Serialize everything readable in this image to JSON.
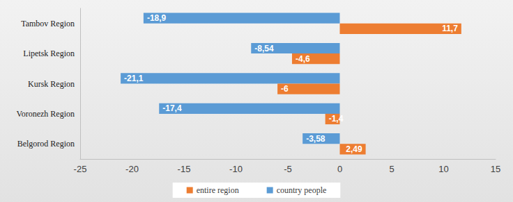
{
  "chart_data": {
    "type": "bar",
    "orientation": "horizontal",
    "categories": [
      "Belgorod Region",
      "Voronezh Region",
      "Kursk Region",
      "Lipetsk Region",
      "Tambov Region"
    ],
    "series": [
      {
        "name": "entire region",
        "color": "#ed7d31",
        "values": [
          2.49,
          -1.4,
          -6,
          -4.6,
          11.7
        ],
        "value_labels": [
          "2,49",
          "-1,4",
          "-6",
          "-4,6",
          "11,7"
        ]
      },
      {
        "name": "country people",
        "color": "#5b9bd5",
        "values": [
          -3.58,
          -17.4,
          -21.1,
          -8.54,
          -18.9
        ],
        "value_labels": [
          "-3,58",
          "-17,4",
          "-21,1",
          "-8,54",
          "-18,9"
        ]
      }
    ],
    "xlim": [
      -25,
      15
    ],
    "xticks": [
      -25,
      -20,
      -15,
      -10,
      -5,
      0,
      5,
      10,
      15
    ],
    "grid": false,
    "legend": "bottom",
    "data_labels": true
  }
}
